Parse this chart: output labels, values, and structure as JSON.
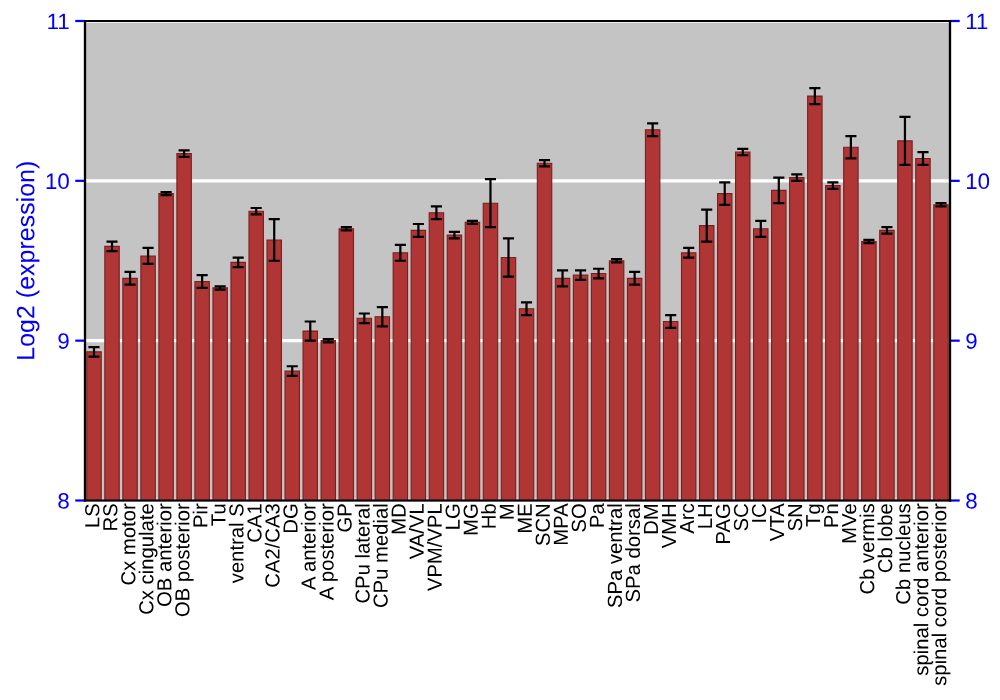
{
  "chart_data": {
    "type": "bar",
    "ylabel": "Log2 (expression)",
    "categories": [
      "LS",
      "RS",
      "Cx motor",
      "Cx cingulate",
      "OB anterior",
      "OB posterior",
      "Pir",
      "Tu",
      "ventral S",
      "CA1",
      "CA2/CA3",
      "DG",
      "A anterior",
      "A posterior",
      "GP",
      "CPu lateral",
      "CPu medial",
      "MD",
      "VA/VL",
      "VPM/VPL",
      "LG",
      "MG",
      "Hb",
      "M",
      "ME",
      "SCN",
      "MPA",
      "SO",
      "Pa",
      "SPa ventral",
      "SPa dorsal",
      "DM",
      "VMH",
      "Arc",
      "LH",
      "PAG",
      "SC",
      "IC",
      "VTA",
      "SN",
      "Tg",
      "Pn",
      "MVe",
      "Cb vermis",
      "Cb lobe",
      "Cb nucleus",
      "spinal cord anterior",
      "spinal cord posterior"
    ],
    "values": [
      8.93,
      9.59,
      9.39,
      9.53,
      9.92,
      10.17,
      9.37,
      9.33,
      9.49,
      9.81,
      9.63,
      8.81,
      9.06,
      9.0,
      9.7,
      9.14,
      9.15,
      9.55,
      9.69,
      9.8,
      9.66,
      9.74,
      9.86,
      9.52,
      9.2,
      10.11,
      9.39,
      9.41,
      9.42,
      9.5,
      9.39,
      10.32,
      9.12,
      9.55,
      9.72,
      9.92,
      10.18,
      9.7,
      9.94,
      10.02,
      10.53,
      9.97,
      10.21,
      9.62,
      9.69,
      10.25,
      10.14,
      9.85
    ],
    "errors": [
      0.03,
      0.03,
      0.04,
      0.05,
      0.01,
      0.02,
      0.04,
      0.01,
      0.03,
      0.02,
      0.13,
      0.03,
      0.06,
      0.01,
      0.01,
      0.03,
      0.06,
      0.05,
      0.04,
      0.04,
      0.02,
      0.01,
      0.15,
      0.12,
      0.04,
      0.02,
      0.05,
      0.03,
      0.03,
      0.01,
      0.04,
      0.04,
      0.04,
      0.03,
      0.1,
      0.07,
      0.02,
      0.05,
      0.08,
      0.02,
      0.05,
      0.02,
      0.07,
      0.01,
      0.02,
      0.15,
      0.04,
      0.01
    ],
    "color": "#b03535",
    "ylim": [
      8,
      11
    ],
    "yticks": [
      8,
      9,
      10,
      11
    ],
    "y2lim": [
      8,
      11
    ],
    "y2ticks": [
      8,
      9,
      10,
      11
    ],
    "grid": "y"
  }
}
